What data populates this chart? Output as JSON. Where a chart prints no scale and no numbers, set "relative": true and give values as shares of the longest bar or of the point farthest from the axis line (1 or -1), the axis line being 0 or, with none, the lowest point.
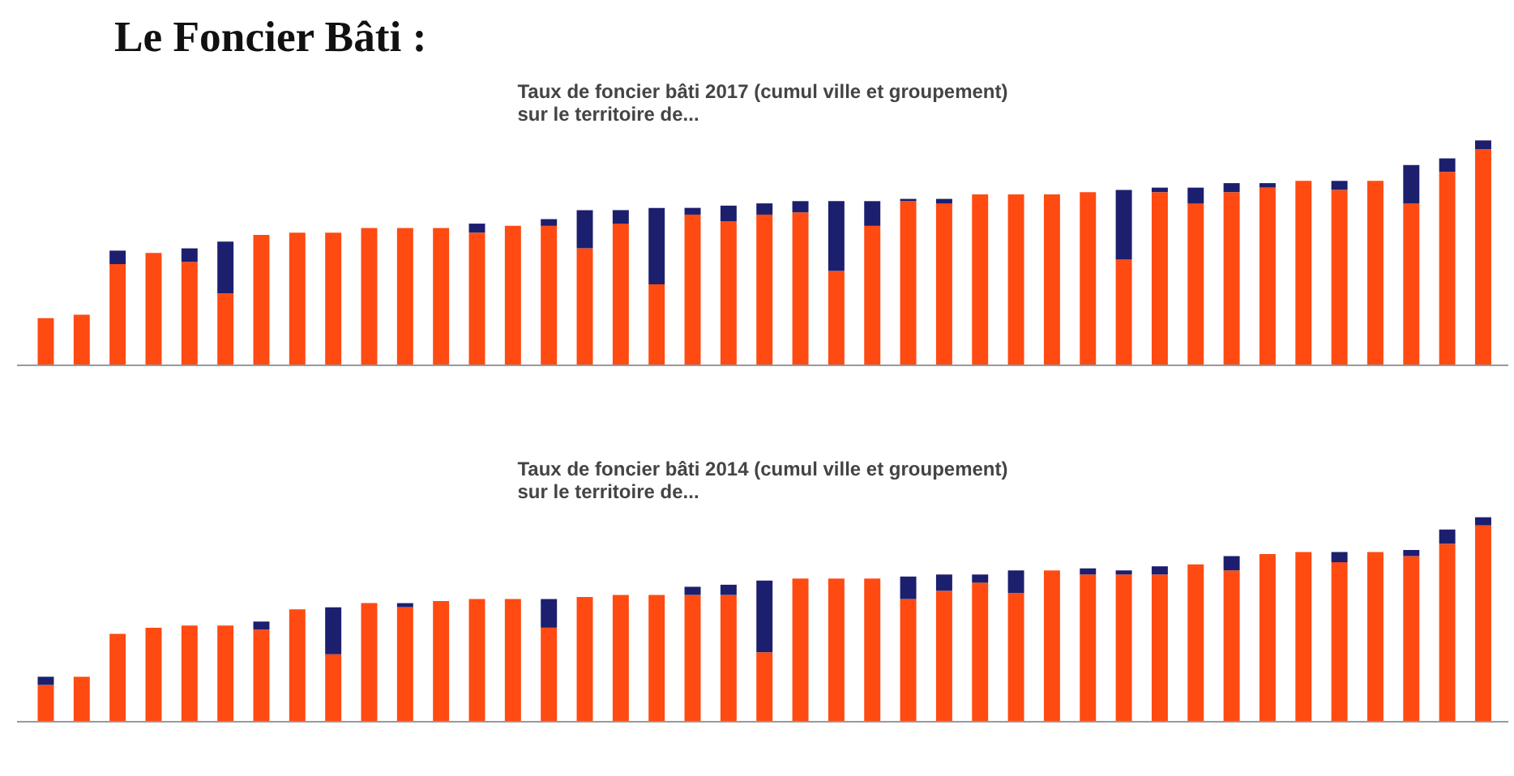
{
  "chart_data": [
    {
      "type": "bar",
      "stacked": true,
      "relative": true,
      "title": "Le Foncier Bâti :",
      "subtitle": "Taux de foncier bâti 2017 (cumul ville et groupement)\nsur le territoire de...",
      "categories": [
        null,
        null,
        null,
        null,
        null,
        null,
        null,
        null,
        null,
        null,
        null,
        null,
        null,
        null,
        null,
        null,
        null,
        null,
        null,
        null,
        null,
        null,
        null,
        null,
        null,
        null,
        null,
        null,
        null,
        null,
        null,
        null,
        null,
        null,
        null,
        null,
        null,
        null,
        null,
        null,
        null
      ],
      "series": [
        {
          "color": "#ff4a12",
          "values": [
            0.21,
            0.225,
            0.45,
            0.5,
            0.46,
            0.32,
            0.58,
            0.59,
            0.59,
            0.61,
            0.61,
            0.61,
            0.59,
            0.62,
            0.62,
            0.52,
            0.63,
            0.36,
            0.67,
            0.64,
            0.67,
            0.68,
            0.42,
            0.62,
            0.73,
            0.72,
            0.76,
            0.76,
            0.76,
            0.77,
            0.47,
            0.77,
            0.72,
            0.77,
            0.79,
            0.82,
            0.78,
            0.82,
            0.72,
            0.86,
            0.96
          ]
        },
        {
          "color": "#1c1f6e",
          "values": [
            0,
            0,
            0.06,
            0,
            0.06,
            0.23,
            0,
            0,
            0,
            0,
            0,
            0,
            0.04,
            0,
            0.03,
            0.17,
            0.06,
            0.34,
            0.03,
            0.07,
            0.05,
            0.05,
            0.31,
            0.11,
            0.01,
            0.02,
            0,
            0,
            0,
            0,
            0.31,
            0.02,
            0.07,
            0.04,
            0.02,
            0,
            0.04,
            0,
            0.17,
            0.06,
            0.04
          ]
        }
      ]
    },
    {
      "type": "bar",
      "stacked": true,
      "relative": true,
      "title": "Taux de foncier bâti 2014 (cumul ville et groupement)\nsur le territoire de...",
      "categories": [
        null,
        null,
        null,
        null,
        null,
        null,
        null,
        null,
        null,
        null,
        null,
        null,
        null,
        null,
        null,
        null,
        null,
        null,
        null,
        null,
        null,
        null,
        null,
        null,
        null,
        null,
        null,
        null,
        null,
        null,
        null,
        null,
        null,
        null,
        null,
        null,
        null,
        null,
        null,
        null,
        null
      ],
      "series": [
        {
          "color": "#ff4a12",
          "values": [
            0.18,
            0.22,
            0.43,
            0.46,
            0.47,
            0.47,
            0.45,
            0.55,
            0.33,
            0.58,
            0.56,
            0.59,
            0.6,
            0.6,
            0.46,
            0.61,
            0.62,
            0.62,
            0.62,
            0.62,
            0.34,
            0.7,
            0.7,
            0.7,
            0.6,
            0.64,
            0.68,
            0.63,
            0.74,
            0.72,
            0.72,
            0.72,
            0.77,
            0.74,
            0.82,
            0.83,
            0.78,
            0.83,
            0.81,
            0.87,
            0.96
          ]
        },
        {
          "color": "#1c1f6e",
          "values": [
            0.04,
            0,
            0,
            0,
            0,
            0,
            0.04,
            0,
            0.23,
            0,
            0.02,
            0,
            0,
            0,
            0.14,
            0,
            0,
            0,
            0.04,
            0.05,
            0.35,
            0,
            0,
            0,
            0.11,
            0.08,
            0.04,
            0.11,
            0,
            0.03,
            0.02,
            0.04,
            0,
            0.07,
            0,
            0,
            0.05,
            0,
            0.03,
            0.07,
            0.04
          ]
        }
      ]
    }
  ]
}
